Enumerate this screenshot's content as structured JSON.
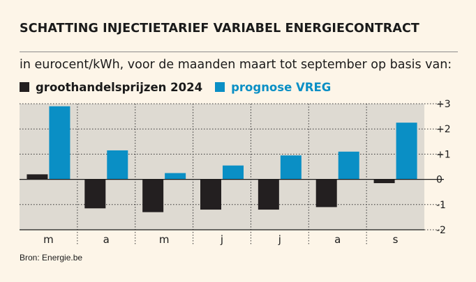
{
  "title": "SCHATTING INJECTIETARIEF VARIABEL ENERGIECONTRACT",
  "subtitle": "in eurocent/kWh, voor de maanden maart tot september op basis van:",
  "source": "Bron: Energie.be",
  "colors": {
    "background": "#fdf5e8",
    "plot_background": "#dedad2",
    "series_1": "#231f20",
    "series_2": "#0a8fc5"
  },
  "chart_data": {
    "type": "bar",
    "title": "SCHATTING INJECTIETARIEF VARIABEL ENERGIECONTRACT",
    "ylabel": "eurocent/kWh",
    "xlabel": "",
    "categories": [
      "m",
      "a",
      "m",
      "j",
      "j",
      "a",
      "s"
    ],
    "series": [
      {
        "name": "groothandelsprijzen 2024",
        "values": [
          0.2,
          -1.15,
          -1.3,
          -1.2,
          -1.2,
          -1.1,
          -0.15
        ]
      },
      {
        "name": "prognose VREG",
        "values": [
          2.9,
          1.15,
          0.25,
          0.55,
          0.95,
          1.1,
          2.25
        ]
      }
    ],
    "ylim": [
      -2,
      3
    ],
    "yticks": [
      3,
      2,
      1,
      0,
      -1,
      -2
    ],
    "ytick_labels": [
      "+3",
      "+2",
      "+1",
      "0",
      "-1",
      "-2"
    ],
    "grid": true,
    "legend": "top-left"
  }
}
